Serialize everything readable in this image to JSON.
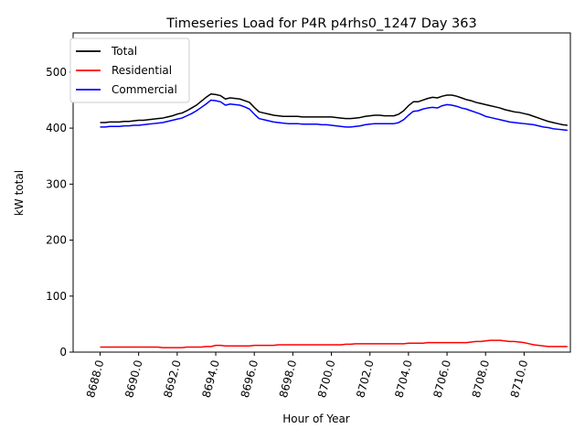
{
  "chart_data": {
    "type": "line",
    "title": "Timeseries Load for P4R p4rhs0_1247  Day 363",
    "xlabel": "Hour of Year",
    "ylabel": "kW total",
    "xlim": [
      8686.6,
      8712.4
    ],
    "ylim": [
      0,
      570
    ],
    "xticks": [
      8688,
      8690,
      8692,
      8694,
      8696,
      8698,
      8700,
      8702,
      8704,
      8706,
      8708,
      8710
    ],
    "xtick_labels": [
      "8688.0",
      "8690.0",
      "8692.0",
      "8694.0",
      "8696.0",
      "8698.0",
      "8700.0",
      "8702.0",
      "8704.0",
      "8706.0",
      "8708.0",
      "8710.0"
    ],
    "yticks": [
      0,
      100,
      200,
      300,
      400,
      500
    ],
    "ytick_labels": [
      "0",
      "100",
      "200",
      "300",
      "400",
      "500"
    ],
    "legend_position": "top-left",
    "grid": false,
    "x_step": 0.25,
    "x_start": 8688.0,
    "series": [
      {
        "name": "Total",
        "color": "#000000",
        "values": [
          410,
          410,
          411,
          411,
          411,
          412,
          412,
          413,
          414,
          414,
          415,
          416,
          417,
          418,
          420,
          422,
          425,
          427,
          431,
          436,
          441,
          448,
          455,
          461,
          460,
          458,
          452,
          454,
          453,
          452,
          449,
          446,
          437,
          429,
          427,
          425,
          423,
          422,
          421,
          421,
          421,
          421,
          420,
          420,
          420,
          420,
          420,
          420,
          420,
          419,
          418,
          417,
          417,
          418,
          419,
          421,
          422,
          423,
          423,
          422,
          422,
          422,
          425,
          431,
          440,
          447,
          447,
          450,
          453,
          455,
          454,
          457,
          459,
          459,
          457,
          454,
          451,
          449,
          446,
          444,
          442,
          440,
          438,
          436,
          433,
          431,
          429,
          428,
          426,
          424,
          421,
          418,
          415,
          412,
          410,
          408,
          406,
          405
        ]
      },
      {
        "name": "Residential",
        "color": "#ff0000",
        "values": [
          9,
          9,
          9,
          9,
          9,
          9,
          9,
          9,
          9,
          9,
          9,
          9,
          9,
          8,
          8,
          8,
          8,
          8,
          9,
          9,
          9,
          9,
          10,
          10,
          12,
          12,
          11,
          11,
          11,
          11,
          11,
          11,
          12,
          12,
          12,
          12,
          12,
          13,
          13,
          13,
          13,
          13,
          13,
          13,
          13,
          13,
          13,
          13,
          13,
          13,
          13,
          14,
          14,
          15,
          15,
          15,
          15,
          15,
          15,
          15,
          15,
          15,
          15,
          15,
          16,
          16,
          16,
          16,
          17,
          17,
          17,
          17,
          17,
          17,
          17,
          17,
          17,
          18,
          19,
          19,
          20,
          21,
          21,
          21,
          20,
          19,
          19,
          18,
          17,
          15,
          13,
          12,
          11,
          10,
          10,
          10,
          10,
          10
        ]
      },
      {
        "name": "Commercial",
        "color": "#0000ff",
        "values": [
          402,
          402,
          403,
          403,
          403,
          404,
          404,
          405,
          405,
          406,
          407,
          408,
          409,
          410,
          412,
          414,
          416,
          418,
          422,
          426,
          431,
          437,
          443,
          450,
          449,
          447,
          441,
          443,
          442,
          441,
          438,
          434,
          425,
          417,
          415,
          413,
          411,
          410,
          409,
          408,
          408,
          408,
          407,
          407,
          407,
          407,
          406,
          406,
          405,
          404,
          403,
          402,
          402,
          403,
          404,
          406,
          407,
          408,
          408,
          408,
          408,
          408,
          410,
          415,
          423,
          430,
          431,
          434,
          436,
          437,
          436,
          440,
          442,
          441,
          439,
          436,
          434,
          431,
          428,
          425,
          421,
          419,
          417,
          415,
          413,
          411,
          410,
          409,
          408,
          407,
          406,
          404,
          402,
          401,
          399,
          398,
          397,
          396
        ]
      }
    ]
  }
}
